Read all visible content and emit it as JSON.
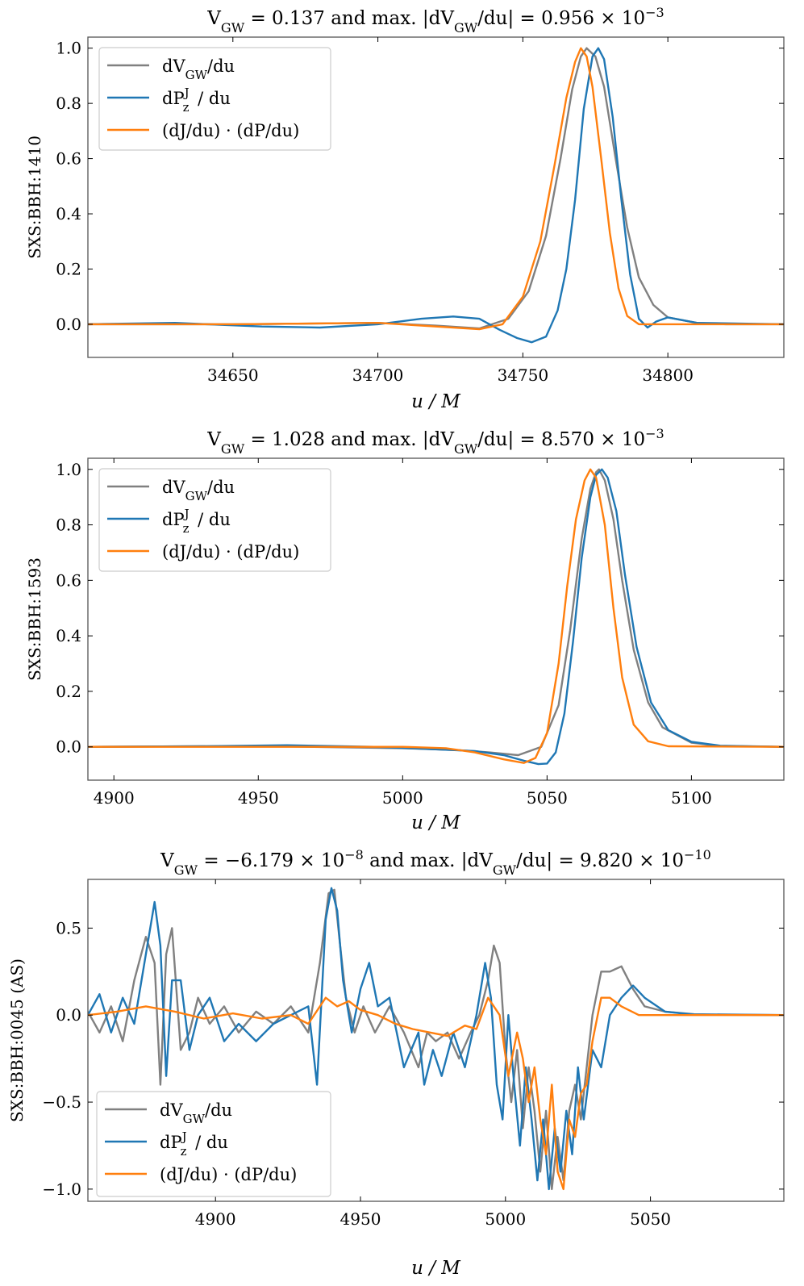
{
  "colors": {
    "gray": "#808080",
    "blue": "#1f77b4",
    "orange": "#ff7f0e"
  },
  "legend": [
    "dV_GW/du",
    "dP_z^J / du",
    "(dJ/du) · (dP/du)"
  ],
  "chart_data": [
    {
      "type": "line",
      "title": "V_GW = 0.137 and max. |dV_GW/du| = 0.956 × 10^−3",
      "xlabel": "u / M",
      "ylabel": "SXS:BBH:1410",
      "xlim": [
        34600,
        34840
      ],
      "ylim": [
        -0.12,
        1.04
      ],
      "xticks": [
        34650,
        34700,
        34750,
        34800
      ],
      "yticks": [
        0.0,
        0.2,
        0.4,
        0.6,
        0.8,
        1.0
      ],
      "legend_position": "upper-left",
      "series": [
        {
          "name": "dV_GW/du",
          "color": "gray",
          "x": [
            34600,
            34650,
            34700,
            34720,
            34735,
            34745,
            34752,
            34758,
            34763,
            34767,
            34770,
            34772,
            34775,
            34778,
            34782,
            34786,
            34790,
            34795,
            34800,
            34810,
            34820,
            34840
          ],
          "y": [
            0,
            0,
            0.005,
            -0.005,
            -0.015,
            0.02,
            0.12,
            0.32,
            0.6,
            0.85,
            0.97,
            1.0,
            0.97,
            0.86,
            0.6,
            0.35,
            0.17,
            0.07,
            0.025,
            0.005,
            0,
            0
          ]
        },
        {
          "name": "dP_z^J / du",
          "color": "blue",
          "x": [
            34600,
            34630,
            34660,
            34680,
            34700,
            34715,
            34726,
            34735,
            34742,
            34748,
            34753,
            34758,
            34762,
            34765,
            34768,
            34771,
            34774,
            34776,
            34778,
            34781,
            34784,
            34787,
            34790,
            34793,
            34796,
            34800,
            34810,
            34840
          ],
          "y": [
            0,
            0.005,
            -0.008,
            -0.012,
            0,
            0.02,
            0.028,
            0.02,
            -0.02,
            -0.05,
            -0.065,
            -0.045,
            0.05,
            0.2,
            0.45,
            0.78,
            0.97,
            1.0,
            0.96,
            0.75,
            0.45,
            0.18,
            0.02,
            -0.012,
            0.01,
            0.025,
            0.005,
            0
          ]
        },
        {
          "name": "(dJ/du) · (dP/du)",
          "color": "orange",
          "x": [
            34600,
            34650,
            34700,
            34720,
            34735,
            34743,
            34750,
            34756,
            34761,
            34765,
            34768,
            34770,
            34772,
            34774,
            34777,
            34780,
            34783,
            34786,
            34790,
            34800,
            34840
          ],
          "y": [
            0,
            0,
            0.005,
            -0.008,
            -0.018,
            0.0,
            0.1,
            0.3,
            0.58,
            0.82,
            0.95,
            1.0,
            0.97,
            0.86,
            0.6,
            0.33,
            0.13,
            0.03,
            0.0,
            0,
            0
          ]
        }
      ]
    },
    {
      "type": "line",
      "title": "V_GW = 1.028 and max. |dV_GW/du| = 8.570 × 10^−3",
      "xlabel": "u / M",
      "ylabel": "SXS:BBH:1593",
      "xlim": [
        4891,
        5132
      ],
      "ylim": [
        -0.12,
        1.04
      ],
      "xticks": [
        4900,
        4950,
        5000,
        5050,
        5100
      ],
      "yticks": [
        0.0,
        0.2,
        0.4,
        0.6,
        0.8,
        1.0
      ],
      "legend_position": "upper-left",
      "series": [
        {
          "name": "dV_GW/du",
          "color": "gray",
          "x": [
            4891,
            4950,
            5000,
            5020,
            5030,
            5040,
            5048,
            5054,
            5058,
            5062,
            5065,
            5067,
            5068,
            5070,
            5073,
            5076,
            5080,
            5085,
            5090,
            5100,
            5110,
            5132
          ],
          "y": [
            0,
            0.003,
            -0.005,
            -0.012,
            -0.02,
            -0.03,
            0.0,
            0.15,
            0.42,
            0.75,
            0.93,
            0.99,
            1.0,
            0.96,
            0.82,
            0.6,
            0.35,
            0.16,
            0.07,
            0.015,
            0.003,
            0
          ]
        },
        {
          "name": "dP_z^J / du",
          "color": "blue",
          "x": [
            4891,
            4930,
            4960,
            4990,
            5010,
            5025,
            5035,
            5042,
            5047,
            5050,
            5053,
            5056,
            5059,
            5062,
            5065,
            5067,
            5069,
            5071,
            5074,
            5077,
            5081,
            5086,
            5092,
            5100,
            5110,
            5132
          ],
          "y": [
            0,
            0.002,
            0.006,
            0.0,
            -0.008,
            -0.015,
            -0.03,
            -0.05,
            -0.062,
            -0.06,
            -0.02,
            0.12,
            0.38,
            0.68,
            0.9,
            0.98,
            1.0,
            0.97,
            0.85,
            0.62,
            0.36,
            0.16,
            0.06,
            0.018,
            0.004,
            0
          ]
        },
        {
          "name": "(dJ/du) · (dP/du)",
          "color": "orange",
          "x": [
            4891,
            4950,
            5000,
            5015,
            5025,
            5035,
            5042,
            5046,
            5050,
            5054,
            5057,
            5060,
            5063,
            5065,
            5067,
            5070,
            5073,
            5076,
            5080,
            5085,
            5092,
            5132
          ],
          "y": [
            0,
            0,
            0,
            -0.005,
            -0.02,
            -0.045,
            -0.058,
            -0.04,
            0.05,
            0.3,
            0.58,
            0.82,
            0.96,
            1.0,
            0.97,
            0.8,
            0.5,
            0.25,
            0.08,
            0.02,
            0.002,
            0
          ]
        }
      ]
    },
    {
      "type": "line",
      "title": "V_GW = −6.179 × 10^−8 and max. |dV_GW/du| = 9.820 × 10^−10",
      "xlabel": "u / M",
      "ylabel": "SXS:BBH:0045 (AS)",
      "xlim": [
        4856,
        5096
      ],
      "ylim": [
        -1.07,
        0.78
      ],
      "xticks": [
        4900,
        4950,
        5000,
        5050
      ],
      "yticks": [
        -1.0,
        -0.5,
        0.0,
        0.5
      ],
      "legend_position": "lower-left",
      "series": [
        {
          "name": "dV_GW/du",
          "color": "gray",
          "x": [
            4856,
            4860,
            4864,
            4868,
            4872,
            4876,
            4879,
            4881,
            4883,
            4885,
            4888,
            4891,
            4894,
            4898,
            4903,
            4908,
            4914,
            4920,
            4926,
            4932,
            4936,
            4939,
            4941,
            4943,
            4945,
            4948,
            4951,
            4955,
            4960,
            4965,
            4970,
            4973,
            4976,
            4980,
            4984,
            4988,
            4991,
            4994,
            4996,
            4998,
            5000,
            5002,
            5004,
            5006,
            5008,
            5010,
            5012,
            5014,
            5016,
            5018,
            5020,
            5022,
            5024,
            5026,
            5028,
            5030,
            5033,
            5036,
            5040,
            5044,
            5048,
            5055,
            5065,
            5096
          ],
          "y": [
            0.02,
            -0.1,
            0.05,
            -0.15,
            0.2,
            0.45,
            0.3,
            -0.4,
            0.35,
            0.5,
            -0.2,
            -0.1,
            0.1,
            -0.05,
            0.05,
            -0.1,
            0.02,
            -0.05,
            0.05,
            -0.1,
            0.3,
            0.7,
            0.72,
            0.4,
            0.1,
            -0.1,
            0.05,
            -0.1,
            0.05,
            -0.1,
            -0.3,
            -0.1,
            -0.15,
            -0.1,
            -0.25,
            -0.1,
            0.0,
            0.2,
            0.4,
            0.3,
            -0.2,
            -0.5,
            -0.2,
            -0.65,
            -0.3,
            -0.55,
            -0.9,
            -0.55,
            -1.0,
            -0.7,
            -0.95,
            -0.55,
            -0.4,
            -0.6,
            -0.3,
            0.0,
            0.25,
            0.25,
            0.28,
            0.15,
            0.05,
            0.02,
            0.005,
            0
          ]
        },
        {
          "name": "dP_z^J / du",
          "color": "blue",
          "x": [
            4856,
            4860,
            4864,
            4868,
            4872,
            4876,
            4879,
            4881,
            4883,
            4885,
            4888,
            4891,
            4894,
            4898,
            4903,
            4908,
            4914,
            4920,
            4926,
            4932,
            4935,
            4938,
            4940,
            4942,
            4944,
            4947,
            4950,
            4953,
            4956,
            4960,
            4965,
            4970,
            4972,
            4975,
            4978,
            4982,
            4986,
            4990,
            4993,
            4995,
            4997,
            4999,
            5001,
            5003,
            5005,
            5007,
            5009,
            5011,
            5013,
            5015,
            5017,
            5019,
            5021,
            5023,
            5025,
            5027,
            5030,
            5033,
            5036,
            5040,
            5044,
            5048,
            5055,
            5065,
            5096
          ],
          "y": [
            0.0,
            0.12,
            -0.1,
            0.1,
            -0.05,
            0.35,
            0.65,
            0.4,
            -0.35,
            0.2,
            0.2,
            -0.2,
            0.0,
            0.1,
            -0.15,
            -0.05,
            -0.15,
            -0.05,
            0.0,
            0.05,
            -0.4,
            0.55,
            0.73,
            0.6,
            0.2,
            -0.1,
            0.15,
            0.3,
            0.05,
            0.1,
            -0.3,
            -0.1,
            -0.4,
            -0.2,
            -0.35,
            -0.1,
            -0.3,
            0.0,
            0.3,
            0.1,
            -0.4,
            -0.6,
            0.0,
            -0.4,
            -0.75,
            -0.3,
            -0.6,
            -0.95,
            -0.6,
            -1.0,
            -0.65,
            -0.9,
            -0.55,
            -0.8,
            -0.3,
            -0.6,
            -0.2,
            -0.3,
            0.0,
            0.1,
            0.17,
            0.1,
            0.02,
            0.003,
            0
          ]
        },
        {
          "name": "(dJ/du) · (dP/du)",
          "color": "orange",
          "x": [
            4856,
            4866,
            4876,
            4886,
            4896,
            4906,
            4916,
            4926,
            4932,
            4938,
            4942,
            4946,
            4950,
            4956,
            4962,
            4968,
            4974,
            4980,
            4986,
            4990,
            4994,
            4998,
            5001,
            5004,
            5006,
            5008,
            5010,
            5012,
            5014,
            5016,
            5018,
            5020,
            5022,
            5024,
            5026,
            5028,
            5030,
            5033,
            5036,
            5040,
            5046,
            5060,
            5096
          ],
          "y": [
            0.0,
            0.02,
            0.05,
            0.02,
            -0.02,
            0.01,
            -0.02,
            0.0,
            -0.05,
            0.1,
            0.05,
            0.08,
            0.03,
            0.0,
            -0.05,
            -0.08,
            -0.1,
            -0.12,
            -0.06,
            -0.08,
            0.1,
            0.0,
            -0.35,
            -0.1,
            -0.25,
            -0.5,
            -0.3,
            -0.6,
            -0.8,
            -0.4,
            -0.9,
            -1.0,
            -0.6,
            -0.7,
            -0.45,
            -0.4,
            -0.15,
            0.1,
            0.1,
            0.05,
            0.0,
            0.0,
            0
          ]
        }
      ]
    }
  ]
}
